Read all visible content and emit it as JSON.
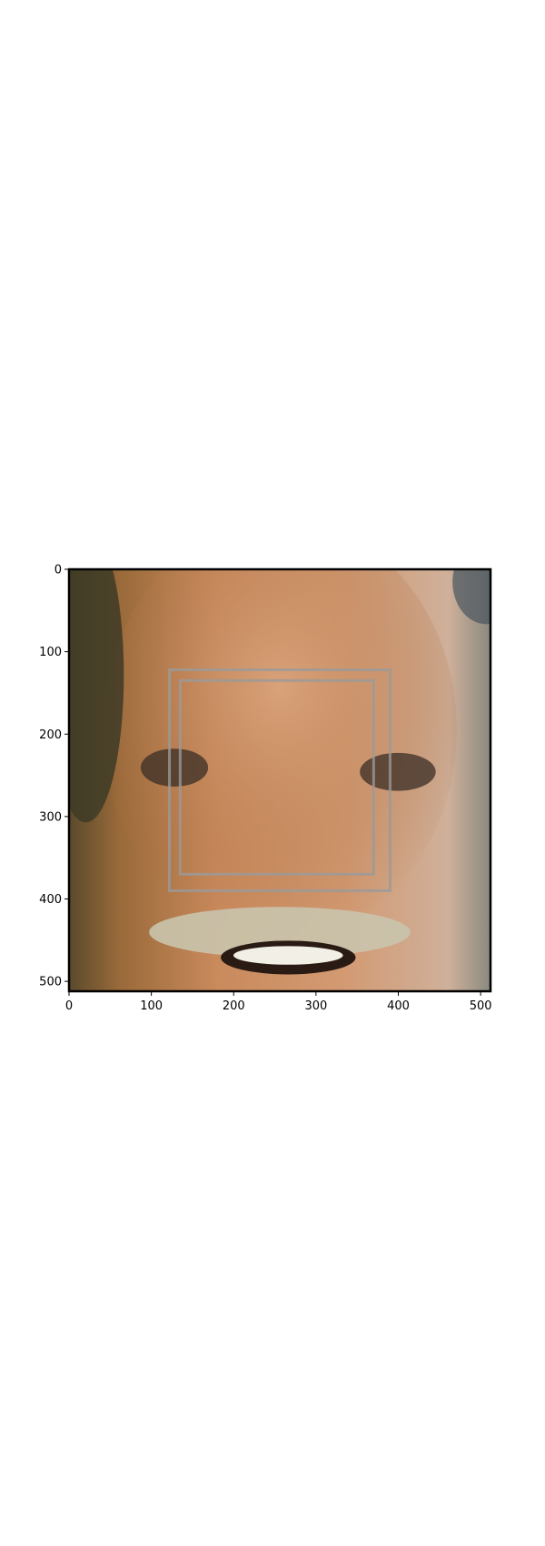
{
  "chart_data": {
    "type": "image",
    "title": "",
    "xlabel": "",
    "ylabel": "",
    "xlim": [
      0,
      512
    ],
    "ylim": [
      512,
      0
    ],
    "x_ticks": [
      0,
      100,
      200,
      300,
      400,
      500
    ],
    "y_ticks": [
      0,
      100,
      200,
      300,
      400,
      500
    ],
    "grid": false,
    "image_content": "close-up photo of a smiling man's face",
    "overlay_boxes": [
      {
        "name": "outer-box",
        "x": [
          122,
          390
        ],
        "y": [
          122,
          390
        ]
      },
      {
        "name": "inner-box",
        "x": [
          135,
          370
        ],
        "y": [
          135,
          370
        ]
      }
    ]
  }
}
